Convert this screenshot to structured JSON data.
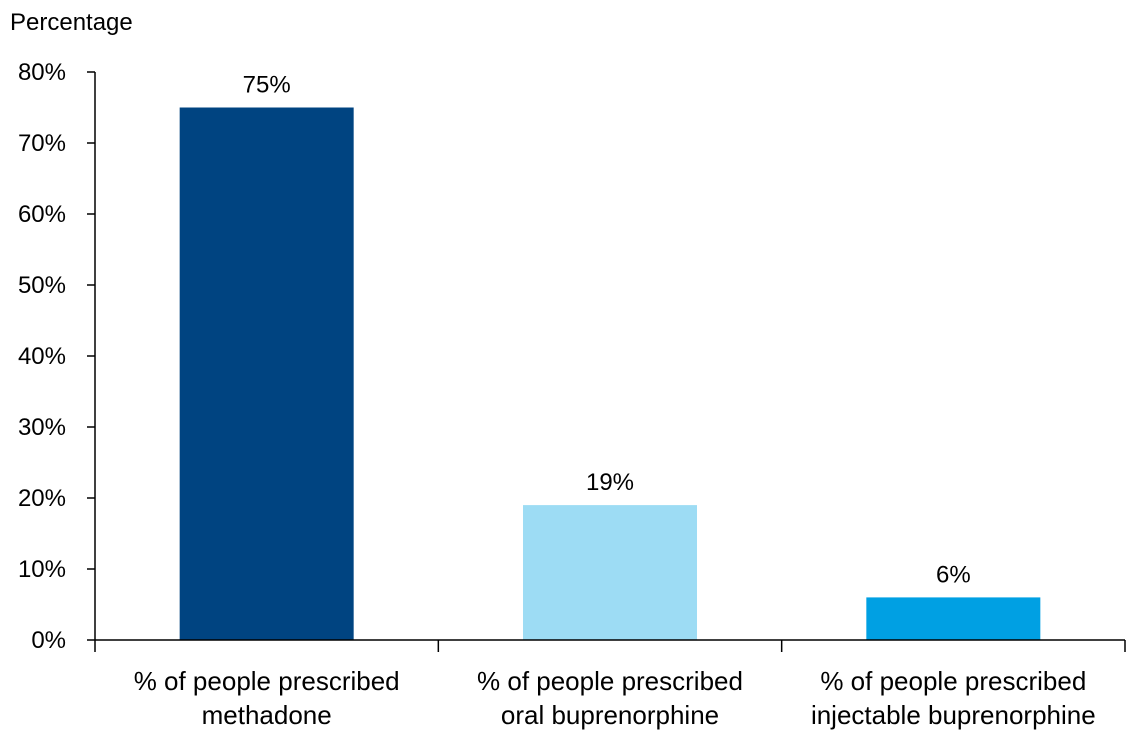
{
  "chart_data": {
    "type": "bar",
    "ylabel": "Percentage",
    "xlabel": "",
    "ylim": [
      0,
      80
    ],
    "y_ticks": [
      0,
      10,
      20,
      30,
      40,
      50,
      60,
      70,
      80
    ],
    "y_tick_labels": [
      "0%",
      "10%",
      "20%",
      "30%",
      "40%",
      "50%",
      "60%",
      "70%",
      "80%"
    ],
    "categories": [
      [
        "% of people prescribed",
        "methadone"
      ],
      [
        "% of people prescribed",
        "oral buprenorphine"
      ],
      [
        "% of people prescribed",
        "injectable buprenorphine"
      ]
    ],
    "values": [
      75,
      19,
      6
    ],
    "data_labels": [
      "75%",
      "19%",
      "6%"
    ],
    "colors": [
      "#004481",
      "#9ddcf4",
      "#00a0e3"
    ],
    "grid": false,
    "legend": "none"
  }
}
